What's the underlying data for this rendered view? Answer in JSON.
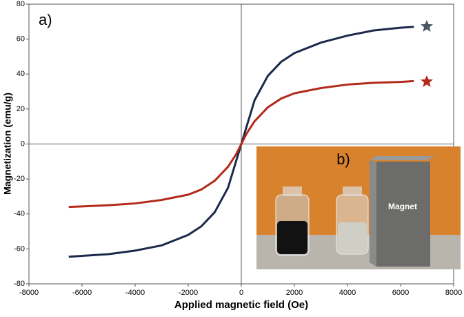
{
  "chart_data": {
    "type": "line",
    "panel_label": "a)",
    "x_label": "Applied magnetic field (Oe)",
    "y_label": "Magnetization (emu/g)",
    "x": [
      -6500,
      -6000,
      -5000,
      -4000,
      -3000,
      -2000,
      -1500,
      -1000,
      -500,
      -200,
      0,
      200,
      500,
      1000,
      1500,
      2000,
      3000,
      4000,
      5000,
      6000,
      6500
    ],
    "series": [
      {
        "color": "#1b2a4a",
        "values": [
          -64.5,
          -64,
          -63,
          -61,
          -58,
          -52,
          -47,
          -39,
          -25,
          -10,
          0,
          10,
          25,
          39,
          47,
          52,
          58,
          62,
          65,
          66.5,
          67
        ]
      },
      {
        "color": "#b22a1a",
        "values": [
          -36,
          -35.7,
          -35,
          -34,
          -32,
          -29,
          -26,
          -21,
          -13,
          -6,
          0,
          6,
          13,
          21,
          26,
          29,
          32,
          34,
          35,
          35.5,
          36
        ]
      }
    ],
    "xlim": [
      -8000,
      8000
    ],
    "xticks": [
      -8000,
      -6000,
      -4000,
      -2000,
      0,
      2000,
      4000,
      6000,
      8000
    ],
    "ylim": [
      -80,
      80
    ],
    "yticks": [
      -80,
      -60,
      -40,
      -20,
      0,
      20,
      40,
      60,
      80
    ]
  },
  "inset": {
    "label": "b)",
    "magnet_label": "Magnet"
  }
}
